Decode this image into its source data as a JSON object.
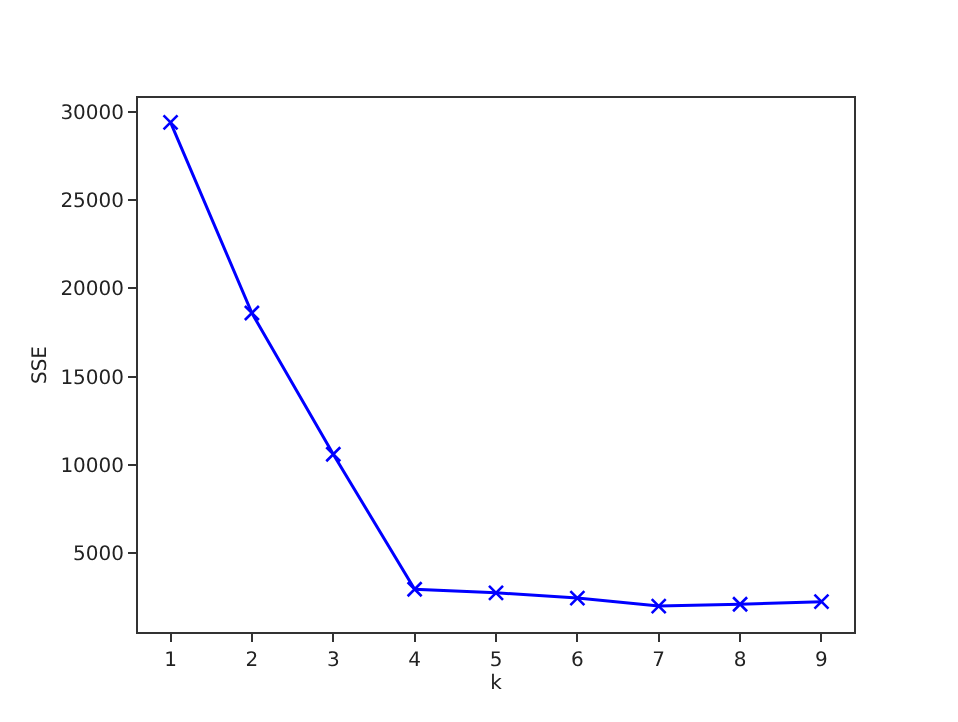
{
  "chart_data": {
    "type": "line",
    "xlabel": "k",
    "ylabel": "SSE",
    "x": [
      1,
      2,
      3,
      4,
      5,
      6,
      7,
      8,
      9
    ],
    "series": [
      {
        "color": "#0000ff",
        "values": [
          29400,
          18600,
          10600,
          2950,
          2750,
          2450,
          2000,
          2100,
          2250
        ]
      }
    ],
    "marker": "cross",
    "line_style": "solid",
    "xlim": [
      0.6,
      9.4
    ],
    "xticks": [
      1,
      2,
      3,
      4,
      5,
      6,
      7,
      8,
      9
    ],
    "ylim": [
      530,
      30780
    ],
    "yticks": [
      5000,
      10000,
      15000,
      20000,
      25000,
      30000
    ]
  }
}
